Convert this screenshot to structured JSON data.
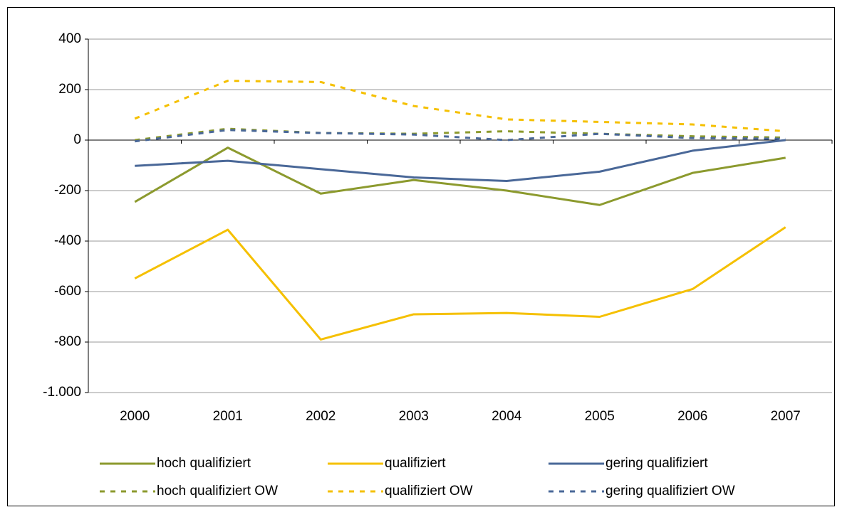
{
  "chart_data": {
    "type": "line",
    "categories": [
      "2000",
      "2001",
      "2002",
      "2003",
      "2004",
      "2005",
      "2006",
      "2007"
    ],
    "series": [
      {
        "name": "hoch qualifiziert",
        "color": "#8c9a2e",
        "dash": false,
        "values": [
          -245,
          -30,
          -212,
          -158,
          -200,
          -257,
          -130,
          -70
        ]
      },
      {
        "name": "qualifiziert",
        "color": "#f5c000",
        "dash": false,
        "values": [
          -548,
          -355,
          -790,
          -690,
          -685,
          -700,
          -590,
          -345
        ]
      },
      {
        "name": "gering qualifiziert",
        "color": "#4a6898",
        "dash": false,
        "values": [
          -102,
          -82,
          -115,
          -148,
          -162,
          -125,
          -42,
          0
        ]
      },
      {
        "name": "hoch qualifiziert OW",
        "color": "#8c9a2e",
        "dash": true,
        "values": [
          0,
          45,
          28,
          25,
          35,
          25,
          15,
          10
        ]
      },
      {
        "name": "qualifiziert OW",
        "color": "#f5c000",
        "dash": true,
        "values": [
          85,
          235,
          230,
          135,
          82,
          72,
          62,
          35
        ]
      },
      {
        "name": "gering qualifiziert OW",
        "color": "#4a6898",
        "dash": true,
        "values": [
          -5,
          40,
          28,
          22,
          0,
          25,
          8,
          5
        ]
      }
    ],
    "ylim": [
      -1000,
      400
    ],
    "yticks": [
      {
        "value": -1000,
        "label": "-1.000"
      },
      -800,
      -600,
      -400,
      -200,
      0,
      200,
      400
    ],
    "grid": true,
    "legend": "bottom"
  }
}
